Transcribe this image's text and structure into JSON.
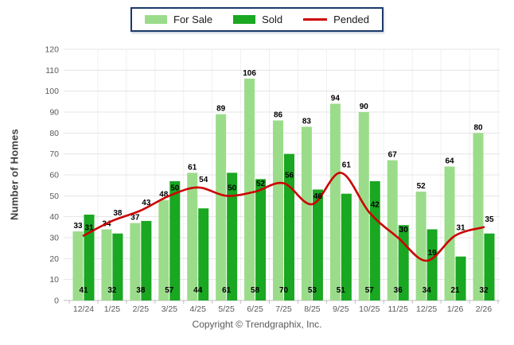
{
  "legend": {
    "items": [
      {
        "label": "For Sale",
        "swatch": "box"
      },
      {
        "label": "Sold",
        "swatch": "box"
      },
      {
        "label": "Pended",
        "swatch": "line"
      }
    ]
  },
  "footer": {
    "copyright": "Copyright © Trendgraphix, Inc."
  },
  "chart_data": {
    "type": "bar",
    "title": "",
    "ylabel": "Number of Homes",
    "xlabel": "",
    "ylim": [
      0,
      120
    ],
    "ytick_step": 10,
    "yticks": [
      0,
      10,
      20,
      30,
      40,
      50,
      60,
      70,
      80,
      90,
      100,
      110,
      120
    ],
    "grid": true,
    "legend_position": "top",
    "categories": [
      "12/24",
      "1/25",
      "2/25",
      "3/25",
      "4/25",
      "5/25",
      "6/25",
      "7/25",
      "8/25",
      "9/25",
      "10/25",
      "11/25",
      "12/25",
      "1/26",
      "2/26"
    ],
    "series": [
      {
        "name": "For Sale",
        "type": "bar",
        "color": "#9BDC8A",
        "values": [
          33,
          34,
          37,
          48,
          61,
          89,
          106,
          86,
          83,
          94,
          90,
          67,
          52,
          64,
          80
        ]
      },
      {
        "name": "Sold",
        "type": "bar",
        "color": "#1AA722",
        "values": [
          41,
          32,
          38,
          57,
          44,
          61,
          58,
          70,
          53,
          51,
          57,
          36,
          34,
          21,
          32
        ]
      },
      {
        "name": "Pended",
        "type": "line",
        "color": "#CC0000",
        "values": [
          31,
          38,
          43,
          50,
          54,
          50,
          52,
          56,
          46,
          61,
          42,
          30,
          19,
          31,
          35
        ]
      }
    ],
    "colors": {
      "grid_line": "#E4E4E4",
      "grid_line_vertical": "#F0F0F0",
      "axis_line": "#BFBFBF",
      "tick_text": "#595959",
      "value_label": "#000000",
      "legend_border": "#1B3A6B"
    }
  }
}
